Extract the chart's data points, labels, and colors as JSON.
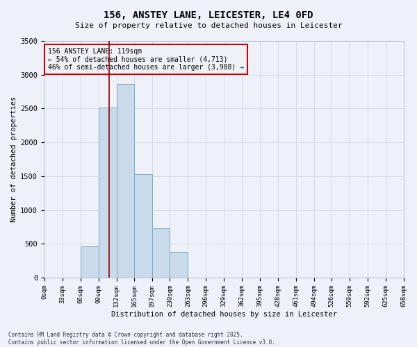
{
  "title": "156, ANSTEY LANE, LEICESTER, LE4 0FD",
  "subtitle": "Size of property relative to detached houses in Leicester",
  "xlabel": "Distribution of detached houses by size in Leicester",
  "ylabel": "Number of detached properties",
  "annotation_title": "156 ANSTEY LANE: 119sqm",
  "annotation_line1": "← 54% of detached houses are smaller (4,713)",
  "annotation_line2": "46% of semi-detached houses are larger (3,988) →",
  "property_size": 119,
  "bar_edges": [
    0,
    33,
    66,
    99,
    132,
    165,
    197,
    230,
    263,
    296,
    329,
    362,
    395,
    428,
    461,
    494,
    526,
    559,
    592,
    625,
    658
  ],
  "bar_heights": [
    0,
    0,
    460,
    2510,
    2860,
    1530,
    730,
    380,
    0,
    0,
    0,
    0,
    0,
    0,
    0,
    0,
    0,
    0,
    0,
    0
  ],
  "bar_color": "#c9daea",
  "bar_edge_color": "#7aaac8",
  "vline_color": "#8b0000",
  "annotation_box_color": "#cc0000",
  "background_color": "#eef2f8",
  "grid_color": "#d0d8e8",
  "ylim": [
    0,
    3500
  ],
  "xlim": [
    0,
    658
  ],
  "yticks": [
    0,
    500,
    1000,
    1500,
    2000,
    2500,
    3000,
    3500
  ],
  "footer_line1": "Contains HM Land Registry data © Crown copyright and database right 2025.",
  "footer_line2": "Contains public sector information licensed under the Open Government Licence v3.0."
}
